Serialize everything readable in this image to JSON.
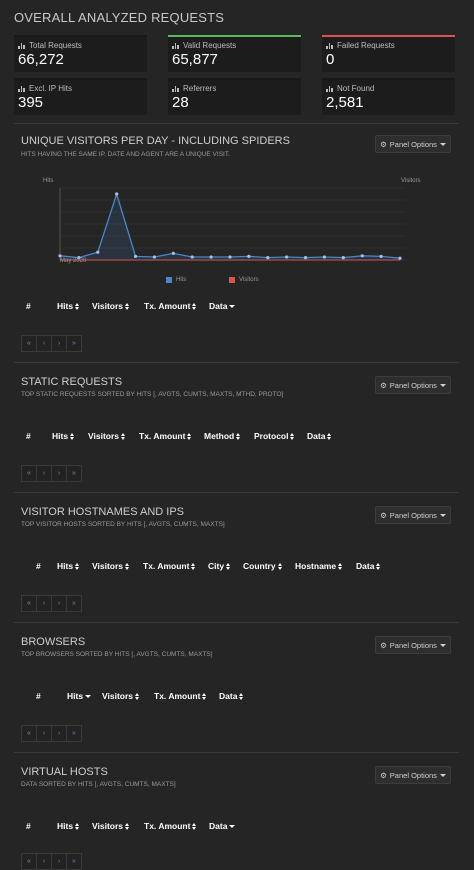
{
  "page_title": "OVERALL ANALYZED REQUESTS",
  "colors": {
    "valid": "#5cb85c",
    "failed": "#d9534f",
    "hits": "#4a86c8",
    "visitors": "#d9534f"
  },
  "overview": [
    {
      "label": "Total Requests",
      "value": "66,272",
      "accent": ""
    },
    {
      "label": "Valid Requests",
      "value": "65,877",
      "accent": "valid"
    },
    {
      "label": "Failed Requests",
      "value": "0",
      "accent": "failed"
    },
    {
      "label": "Excl. IP Hits",
      "value": "395",
      "accent": ""
    },
    {
      "label": "Referrers",
      "value": "28",
      "accent": ""
    },
    {
      "label": "Not Found",
      "value": "2,581",
      "accent": ""
    }
  ],
  "panel_options_label": "Panel Options",
  "panels": {
    "visitors": {
      "title": "UNIQUE VISITORS PER DAY - INCLUDING SPIDERS",
      "subtitle": "HITS HAVING THE SAME IP, DATE AND AGENT ARE A UNIQUE VISIT.",
      "columns": [
        "#",
        "Hits",
        "Visitors",
        "Tx. Amount",
        "Data"
      ]
    },
    "static": {
      "title": "STATIC REQUESTS",
      "subtitle": "TOP STATIC REQUESTS SORTED BY HITS [, AVGTS, CUMTS, MAXTS, MTHD, PROTO]",
      "columns": [
        "#",
        "Hits",
        "Visitors",
        "Tx. Amount",
        "Method",
        "Protocol",
        "Data"
      ]
    },
    "hosts": {
      "title": "VISITOR HOSTNAMES AND IPS",
      "subtitle": "TOP VISITOR HOSTS SORTED BY HITS [, AVGTS, CUMTS, MAXTS]",
      "columns": [
        "#",
        "Hits",
        "Visitors",
        "Tx. Amount",
        "City",
        "Country",
        "Hostname",
        "Data"
      ]
    },
    "browsers": {
      "title": "BROWSERS",
      "subtitle": "TOP BROWSERS SORTED BY HITS [, AVGTS, CUMTS, MAXTS]",
      "columns": [
        "#",
        "Hits",
        "Visitors",
        "Tx. Amount",
        "Data"
      ]
    },
    "vhosts": {
      "title": "VIRTUAL HOSTS",
      "subtitle": "DATA SORTED BY HITS [, AVGTS, CUMTS, MAXTS]",
      "columns": [
        "#",
        "Hits",
        "Visitors",
        "Tx. Amount",
        "Data"
      ]
    }
  },
  "pager": [
    "«",
    "‹",
    "›",
    "»"
  ],
  "chart_data": {
    "type": "line",
    "ylabel_left": "Hits",
    "ylabel_right": "Visitors",
    "x_tick_label": "May 2020",
    "series": [
      {
        "name": "Hits",
        "color": "#4a86c8",
        "values": [
          700,
          400,
          1300,
          11000,
          600,
          500,
          1100,
          500,
          500,
          500,
          600,
          400,
          500,
          400,
          500,
          400,
          700,
          600,
          300
        ]
      },
      {
        "name": "Visitors",
        "color": "#d9534f",
        "values": [
          10,
          10,
          10,
          10,
          10,
          10,
          10,
          10,
          10,
          10,
          10,
          10,
          10,
          10,
          10,
          10,
          10,
          10,
          10
        ]
      }
    ],
    "ylim": [
      0,
      12000
    ],
    "grid": true,
    "legend_position": "bottom"
  }
}
